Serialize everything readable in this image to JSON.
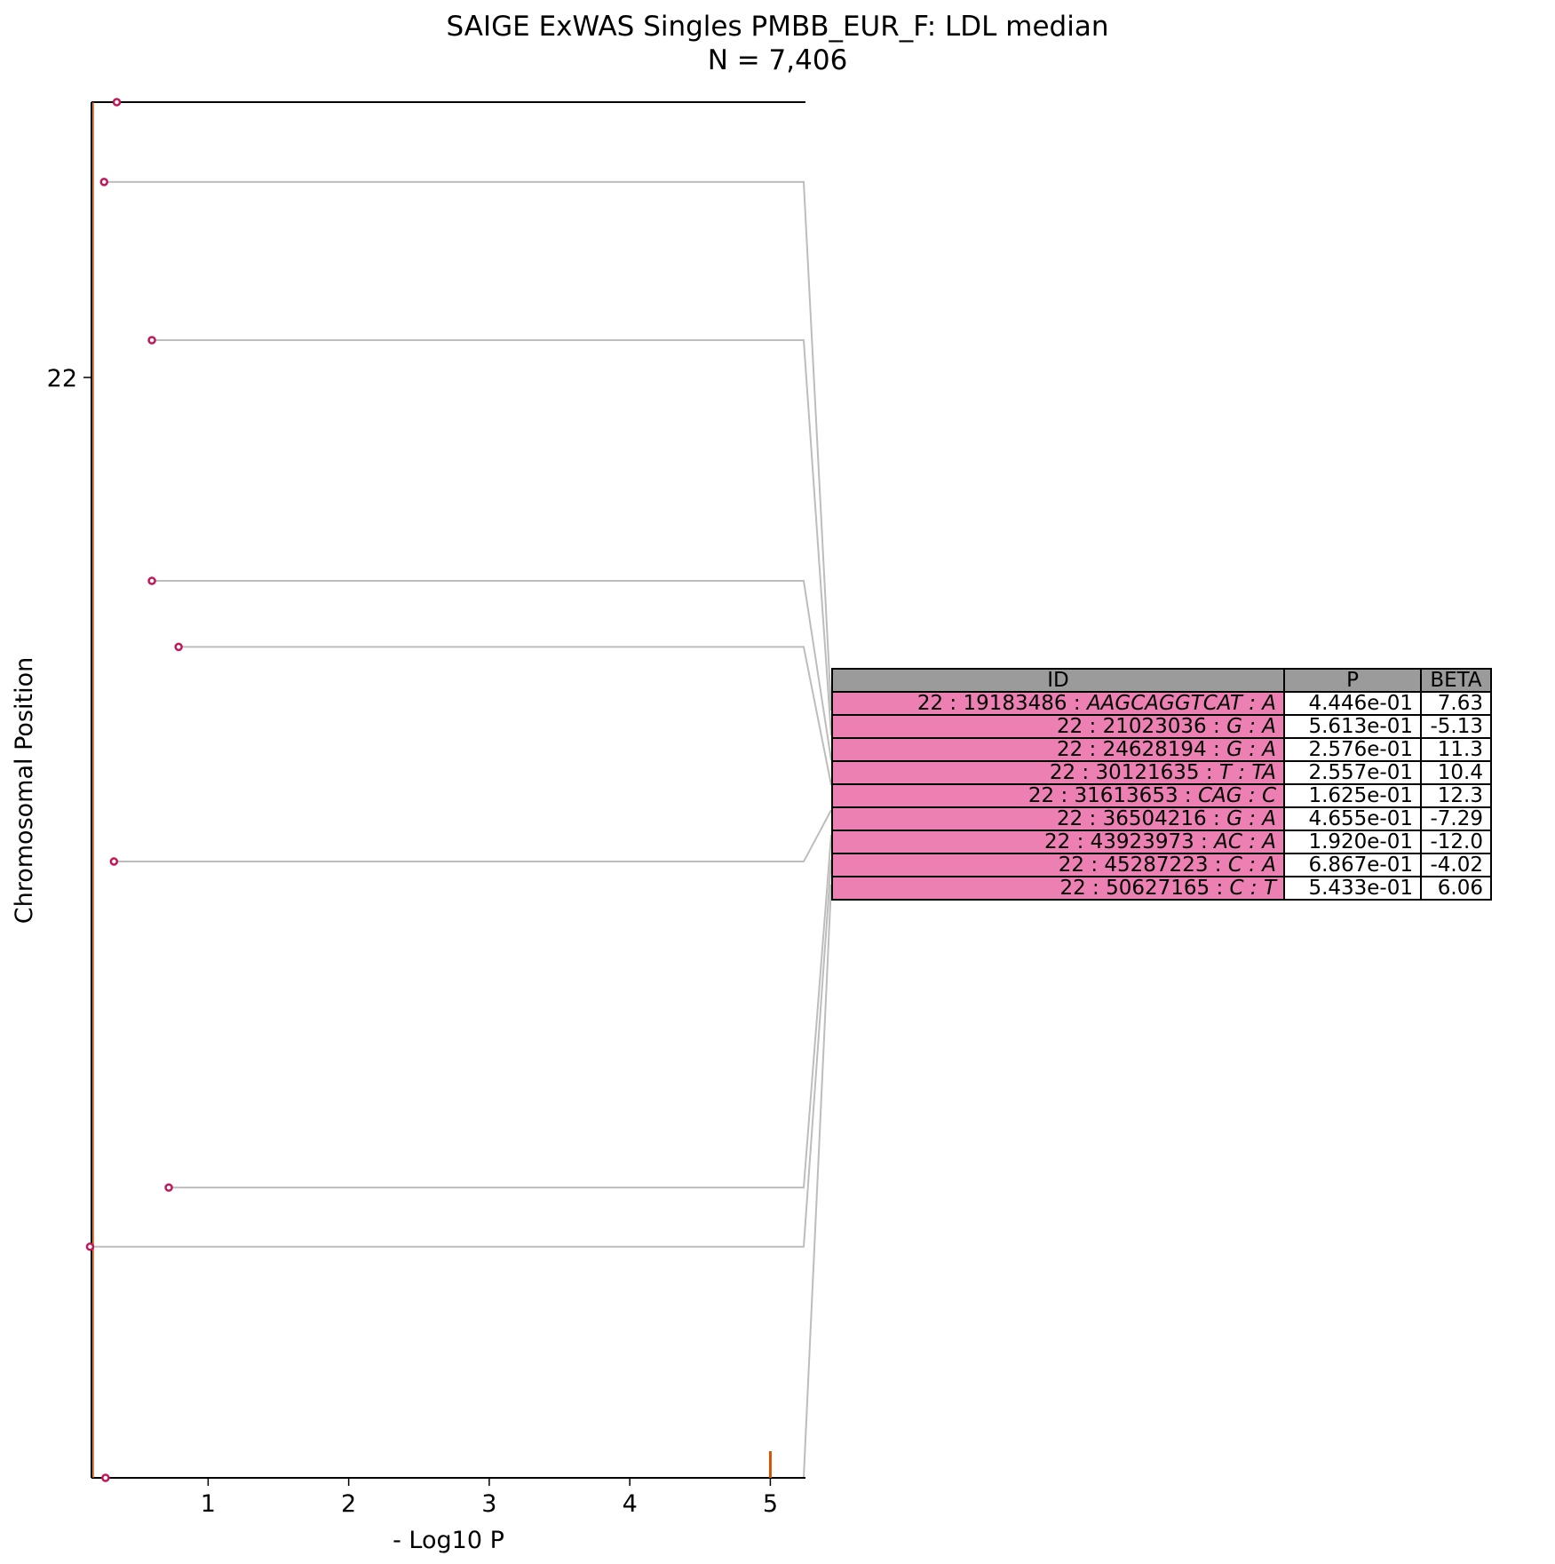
{
  "chart_data": {
    "type": "scatter",
    "title": "SAIGE ExWAS Singles PMBB_EUR_F: LDL median",
    "subtitle": "N = 7,406",
    "xlabel": "- Log10 P",
    "ylabel": "Chromosomal Position",
    "xlim": [
      0.17,
      5.25
    ],
    "x_ticks": [
      1,
      2,
      3,
      4,
      5
    ],
    "y_ticks": [
      "22"
    ],
    "threshold_x": 5,
    "colors": {
      "points": "#c2185b",
      "leader_lines": "#bdbdbd",
      "threshold": "#d35400",
      "row_fill": "#ec80b2",
      "header_fill": "#9b9b9b"
    },
    "points": [
      {
        "y": 0.0,
        "x": 0.35,
        "label": false
      },
      {
        "y": 0.058,
        "x": 0.26,
        "label": true
      },
      {
        "y": 0.173,
        "x": 0.6,
        "label": true
      },
      {
        "y": 0.348,
        "x": 0.6,
        "label": true
      },
      {
        "y": 0.396,
        "x": 0.79,
        "label": true
      },
      {
        "y": 0.552,
        "x": 0.33,
        "label": true
      },
      {
        "y": 0.789,
        "x": 0.72,
        "label": true
      },
      {
        "y": 0.832,
        "x": 0.16,
        "label": true
      },
      {
        "y": 1.0,
        "x": 0.27,
        "label": true
      }
    ]
  },
  "table": {
    "headers": [
      "ID",
      "P",
      "BETA"
    ],
    "rows": [
      {
        "pos": "22 : 19183486 : ",
        "alleles": "AAGCAGGTCAT : A",
        "p": "4.446e-01",
        "beta": "7.63"
      },
      {
        "pos": "22 : 21023036 : ",
        "alleles": "G : A",
        "p": "5.613e-01",
        "beta": "-5.13"
      },
      {
        "pos": "22 : 24628194 : ",
        "alleles": "G : A",
        "p": "2.576e-01",
        "beta": "11.3"
      },
      {
        "pos": "22 : 30121635 : ",
        "alleles": "T : TA",
        "p": "2.557e-01",
        "beta": "10.4"
      },
      {
        "pos": "22 : 31613653 : ",
        "alleles": "CAG : C",
        "p": "1.625e-01",
        "beta": "12.3"
      },
      {
        "pos": "22 : 36504216 : ",
        "alleles": "G : A",
        "p": "4.655e-01",
        "beta": "-7.29"
      },
      {
        "pos": "22 : 43923973 : ",
        "alleles": "AC : A",
        "p": "1.920e-01",
        "beta": "-12.0"
      },
      {
        "pos": "22 : 45287223 : ",
        "alleles": "C : A",
        "p": "6.867e-01",
        "beta": "-4.02"
      },
      {
        "pos": "22 : 50627165 : ",
        "alleles": "C : T",
        "p": "5.433e-01",
        "beta": "6.06"
      }
    ]
  }
}
